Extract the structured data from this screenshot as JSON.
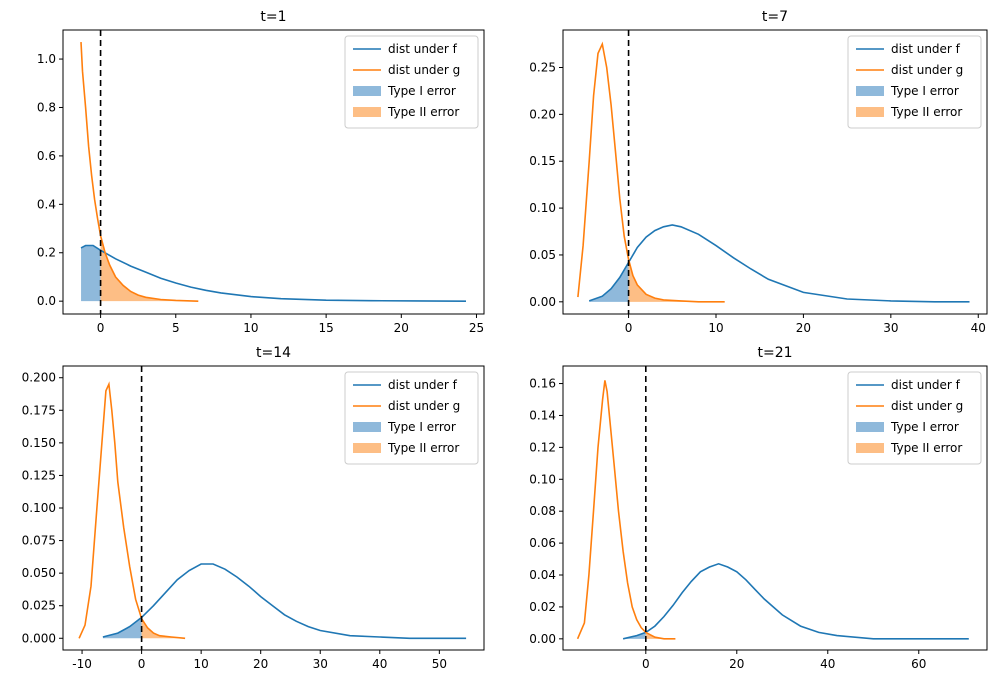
{
  "figure": {
    "legend_labels": [
      "dist under f",
      "dist under g",
      "Type I error",
      "Type II error"
    ]
  },
  "colors": {
    "f": "#1f77b4",
    "g": "#ff7f0e",
    "type1_fill": "#8fb9db",
    "type2_fill": "#fdbe85",
    "threshold": "#000000"
  },
  "chart_data": [
    {
      "type": "line",
      "title": "t=1",
      "xlim": [
        -2.5,
        25.5
      ],
      "ylim": [
        -0.053,
        1.12
      ],
      "xticks": [
        0,
        5,
        10,
        15,
        20,
        25
      ],
      "yticks": [
        0.0,
        0.2,
        0.4,
        0.6,
        0.8,
        1.0
      ],
      "ytick_decimals": 1,
      "threshold_x": 0,
      "legend": "top-right",
      "series": [
        {
          "name": "dist under f",
          "x": [
            -1.3,
            -1.0,
            -0.5,
            0,
            1,
            2,
            3,
            4,
            5,
            6,
            7,
            8,
            10,
            12,
            15,
            18,
            21,
            24.3
          ],
          "y": [
            0.22,
            0.23,
            0.23,
            0.21,
            0.175,
            0.145,
            0.12,
            0.095,
            0.075,
            0.058,
            0.045,
            0.034,
            0.019,
            0.01,
            0.004,
            0.002,
            0.001,
            0.0
          ]
        },
        {
          "name": "dist under g",
          "x": [
            -1.3,
            -1.2,
            -1.0,
            -0.8,
            -0.6,
            -0.4,
            -0.2,
            0,
            0.3,
            0.6,
            1.0,
            1.5,
            2.0,
            2.5,
            3,
            4,
            5,
            6.5
          ],
          "y": [
            1.07,
            0.95,
            0.8,
            0.64,
            0.52,
            0.42,
            0.34,
            0.27,
            0.2,
            0.15,
            0.1,
            0.065,
            0.04,
            0.025,
            0.016,
            0.007,
            0.003,
            0.0
          ]
        }
      ]
    },
    {
      "type": "line",
      "title": "t=7",
      "xlim": [
        -7.5,
        41
      ],
      "ylim": [
        -0.013,
        0.29
      ],
      "xticks": [
        0,
        10,
        20,
        30,
        40
      ],
      "yticks": [
        0.0,
        0.05,
        0.1,
        0.15,
        0.2,
        0.25
      ],
      "ytick_decimals": 2,
      "threshold_x": 0,
      "legend": "top-right",
      "series": [
        {
          "name": "dist under f",
          "x": [
            -4.5,
            -3,
            -2,
            -1,
            0,
            1,
            2,
            3,
            4,
            5,
            6,
            8,
            10,
            12,
            14,
            16,
            20,
            25,
            30,
            35,
            39
          ],
          "y": [
            0.001,
            0.006,
            0.014,
            0.026,
            0.042,
            0.058,
            0.069,
            0.076,
            0.08,
            0.082,
            0.08,
            0.072,
            0.06,
            0.047,
            0.035,
            0.024,
            0.01,
            0.003,
            0.001,
            0.0,
            0.0
          ]
        },
        {
          "name": "dist under g",
          "x": [
            -5.8,
            -5.2,
            -4.5,
            -4.0,
            -3.5,
            -3.0,
            -2.5,
            -2.0,
            -1.5,
            -1.0,
            -0.5,
            0,
            0.5,
            1.0,
            2.0,
            3.0,
            4.0,
            6,
            8,
            11
          ],
          "y": [
            0.005,
            0.06,
            0.15,
            0.22,
            0.265,
            0.275,
            0.25,
            0.21,
            0.16,
            0.11,
            0.07,
            0.045,
            0.028,
            0.018,
            0.008,
            0.004,
            0.002,
            0.001,
            0.0,
            0.0
          ]
        }
      ]
    },
    {
      "type": "line",
      "title": "t=14",
      "xlim": [
        -13.2,
        57.5
      ],
      "ylim": [
        -0.009,
        0.209
      ],
      "xticks": [
        -10,
        0,
        10,
        20,
        30,
        40,
        50
      ],
      "yticks": [
        0.0,
        0.025,
        0.05,
        0.075,
        0.1,
        0.125,
        0.15,
        0.175,
        0.2
      ],
      "ytick_decimals": 3,
      "threshold_x": 0,
      "legend": "top-right",
      "series": [
        {
          "name": "dist under f",
          "x": [
            -6.5,
            -4,
            -2,
            0,
            2,
            4,
            6,
            8,
            10,
            12,
            14,
            16,
            18,
            20,
            22,
            24,
            26,
            28,
            30,
            35,
            40,
            45,
            54.5
          ],
          "y": [
            0.001,
            0.004,
            0.009,
            0.016,
            0.025,
            0.035,
            0.045,
            0.052,
            0.057,
            0.057,
            0.053,
            0.047,
            0.04,
            0.032,
            0.025,
            0.018,
            0.013,
            0.009,
            0.006,
            0.002,
            0.001,
            0.0,
            0.0
          ]
        },
        {
          "name": "dist under g",
          "x": [
            -10.5,
            -9.5,
            -8.5,
            -7.5,
            -6.5,
            -6.0,
            -5.5,
            -5.0,
            -4.5,
            -4.0,
            -3.0,
            -2.0,
            -1.0,
            0,
            1,
            2,
            3,
            5,
            7.3
          ],
          "y": [
            0.0,
            0.01,
            0.04,
            0.1,
            0.16,
            0.19,
            0.195,
            0.175,
            0.15,
            0.12,
            0.085,
            0.055,
            0.03,
            0.015,
            0.008,
            0.004,
            0.002,
            0.001,
            0.0
          ]
        }
      ]
    },
    {
      "type": "line",
      "title": "t=21",
      "xlim": [
        -18.2,
        75
      ],
      "ylim": [
        -0.007,
        0.171
      ],
      "xticks": [
        0,
        20,
        40,
        60
      ],
      "yticks": [
        0.0,
        0.02,
        0.04,
        0.06,
        0.08,
        0.1,
        0.12,
        0.14,
        0.16
      ],
      "ytick_decimals": 2,
      "threshold_x": 0,
      "legend": "top-right",
      "series": [
        {
          "name": "dist under f",
          "x": [
            -5,
            -2,
            0,
            2,
            4,
            6,
            8,
            10,
            12,
            14,
            16,
            18,
            20,
            22,
            24,
            26,
            28,
            30,
            34,
            38,
            42,
            50,
            60,
            71
          ],
          "y": [
            0.0,
            0.002,
            0.004,
            0.008,
            0.014,
            0.021,
            0.029,
            0.036,
            0.042,
            0.045,
            0.047,
            0.045,
            0.042,
            0.037,
            0.031,
            0.025,
            0.02,
            0.015,
            0.008,
            0.004,
            0.002,
            0.0,
            0.0,
            0.0
          ]
        },
        {
          "name": "dist under g",
          "x": [
            -15,
            -13.5,
            -12.5,
            -11.5,
            -10.5,
            -9.5,
            -9.0,
            -8.5,
            -8.0,
            -7.0,
            -6.0,
            -5.0,
            -4.0,
            -3.0,
            -2.0,
            -1.0,
            0,
            2,
            4,
            6.5
          ],
          "y": [
            0.0,
            0.01,
            0.04,
            0.08,
            0.12,
            0.15,
            0.162,
            0.155,
            0.14,
            0.11,
            0.08,
            0.055,
            0.035,
            0.02,
            0.012,
            0.007,
            0.004,
            0.001,
            0.0,
            0.0
          ]
        }
      ]
    }
  ]
}
